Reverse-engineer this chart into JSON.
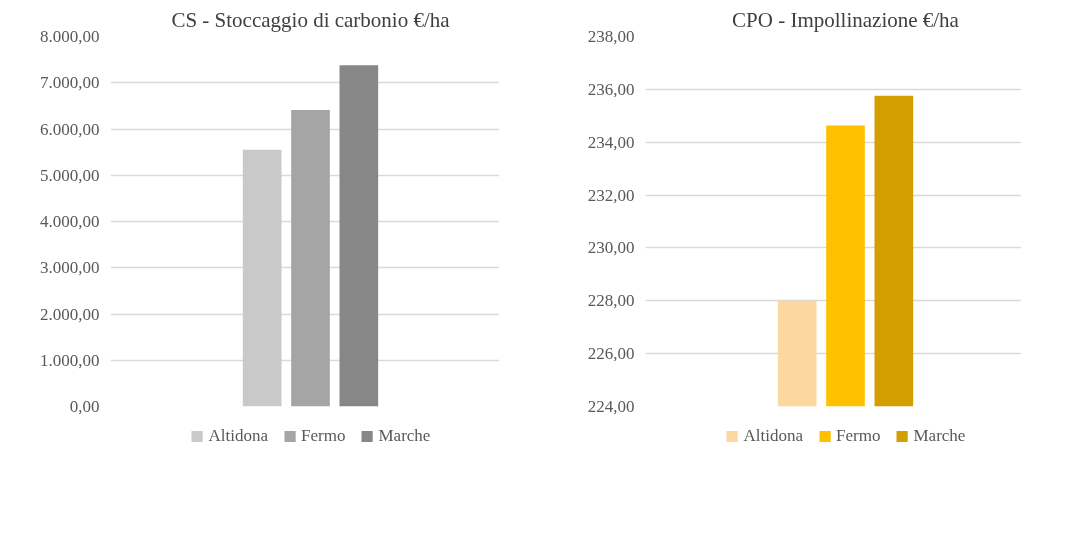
{
  "chart_data": [
    {
      "type": "bar",
      "title": "CS - Stoccaggio di carbonio €/ha",
      "categories": [
        null
      ],
      "series": [
        {
          "name": "Altidona",
          "color": "#c9c9c9",
          "values": [
            5550
          ]
        },
        {
          "name": "Fermo",
          "color": "#a5a5a5",
          "values": [
            6410
          ]
        },
        {
          "name": "Marche",
          "color": "#878787",
          "values": [
            7380
          ]
        }
      ],
      "ylim": [
        0,
        8000
      ],
      "yticks": [
        {
          "value": 0,
          "label": "0,00"
        },
        {
          "value": 1000,
          "label": "1.000,00"
        },
        {
          "value": 2000,
          "label": "2.000,00"
        },
        {
          "value": 3000,
          "label": "3.000,00"
        },
        {
          "value": 4000,
          "label": "4.000,00"
        },
        {
          "value": 5000,
          "label": "5.000,00"
        },
        {
          "value": 6000,
          "label": "6.000,00"
        },
        {
          "value": 7000,
          "label": "7.000,00"
        },
        {
          "value": 8000,
          "label": "8.000,00"
        }
      ],
      "grid": "y",
      "legend": "bottom"
    },
    {
      "type": "bar",
      "title": "CPO - Impollinazione €/ha",
      "categories": [
        null
      ],
      "series": [
        {
          "name": "Altidona",
          "color": "#fdd7a0",
          "values": [
            228.0
          ]
        },
        {
          "name": "Fermo",
          "color": "#ffc000",
          "values": [
            234.63
          ]
        },
        {
          "name": "Marche",
          "color": "#d39f00",
          "values": [
            235.76
          ]
        }
      ],
      "ylim": [
        224,
        238
      ],
      "yticks": [
        {
          "value": 224,
          "label": "224,00"
        },
        {
          "value": 226,
          "label": "226,00"
        },
        {
          "value": 228,
          "label": "228,00"
        },
        {
          "value": 230,
          "label": "230,00"
        },
        {
          "value": 232,
          "label": "232,00"
        },
        {
          "value": 234,
          "label": "234,00"
        },
        {
          "value": 236,
          "label": "236,00"
        },
        {
          "value": 238,
          "label": "238,00"
        }
      ],
      "grid": "y",
      "legend": "bottom"
    }
  ]
}
